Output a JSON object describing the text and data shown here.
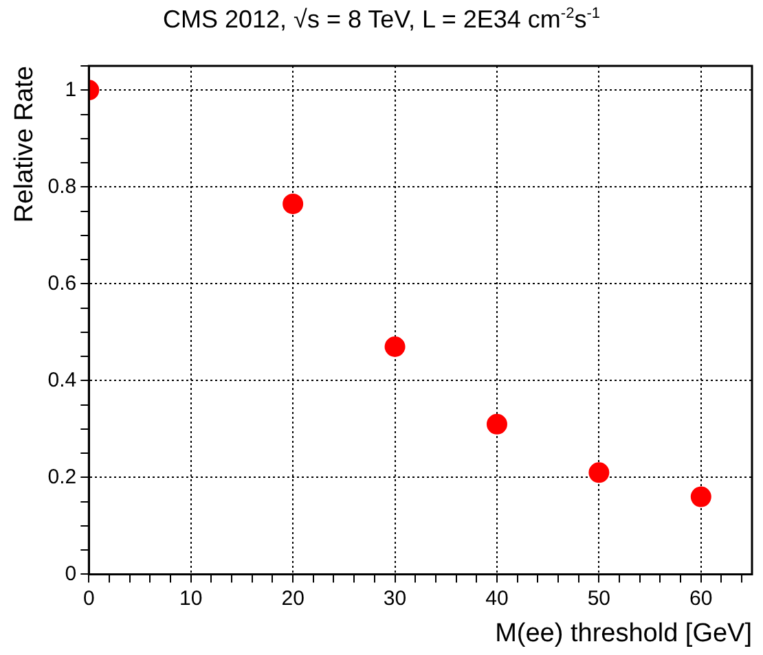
{
  "chart_data": {
    "type": "scatter",
    "title": "CMS 2012, √s = 8 TeV, L = 2E34 cm$^{-2}$s$^{-1}$",
    "xlabel": "M(ee) threshold [GeV]",
    "ylabel": "Relative Rate",
    "x": [
      0,
      20,
      30,
      40,
      50,
      60
    ],
    "series": [
      {
        "color": "#ff0000",
        "values": [
          1.0,
          0.765,
          0.47,
          0.31,
          0.21,
          0.16
        ]
      }
    ],
    "xlim": [
      0,
      65
    ],
    "ylim": [
      0,
      1.05
    ],
    "xticks": [
      0,
      {
        "value": 2,
        "label": null
      },
      {
        "value": 4,
        "label": null
      },
      {
        "value": 6,
        "label": null
      },
      {
        "value": 8,
        "label": null
      },
      10,
      {
        "value": 12,
        "label": null
      },
      {
        "value": 14,
        "label": null
      },
      {
        "value": 16,
        "label": null
      },
      {
        "value": 18,
        "label": null
      },
      20,
      {
        "value": 22,
        "label": null
      },
      {
        "value": 24,
        "label": null
      },
      {
        "value": 26,
        "label": null
      },
      {
        "value": 28,
        "label": null
      },
      30,
      {
        "value": 32,
        "label": null
      },
      {
        "value": 34,
        "label": null
      },
      {
        "value": 36,
        "label": null
      },
      {
        "value": 38,
        "label": null
      },
      40,
      {
        "value": 42,
        "label": null
      },
      {
        "value": 44,
        "label": null
      },
      {
        "value": 46,
        "label": null
      },
      {
        "value": 48,
        "label": null
      },
      50,
      {
        "value": 52,
        "label": null
      },
      {
        "value": 54,
        "label": null
      },
      {
        "value": 56,
        "label": null
      },
      {
        "value": 58,
        "label": null
      },
      60,
      {
        "value": 62,
        "label": null
      },
      {
        "value": 64,
        "label": null
      }
    ],
    "yticks": [
      0,
      {
        "value": 0.05,
        "label": null
      },
      {
        "value": 0.1,
        "label": null
      },
      {
        "value": 0.15,
        "label": null
      },
      0.2,
      {
        "value": 0.25,
        "label": null
      },
      {
        "value": 0.3,
        "label": null
      },
      {
        "value": 0.35,
        "label": null
      },
      0.4,
      {
        "value": 0.45,
        "label": null
      },
      {
        "value": 0.5,
        "label": null
      },
      {
        "value": 0.55,
        "label": null
      },
      0.6,
      {
        "value": 0.65,
        "label": null
      },
      {
        "value": 0.7,
        "label": null
      },
      {
        "value": 0.75,
        "label": null
      },
      0.8,
      {
        "value": 0.85,
        "label": null
      },
      {
        "value": 0.9,
        "label": null
      },
      {
        "value": 0.95,
        "label": null
      },
      1,
      {
        "value": 1.05,
        "label": null
      }
    ],
    "grid": true,
    "legend": false,
    "marker": "circle"
  }
}
